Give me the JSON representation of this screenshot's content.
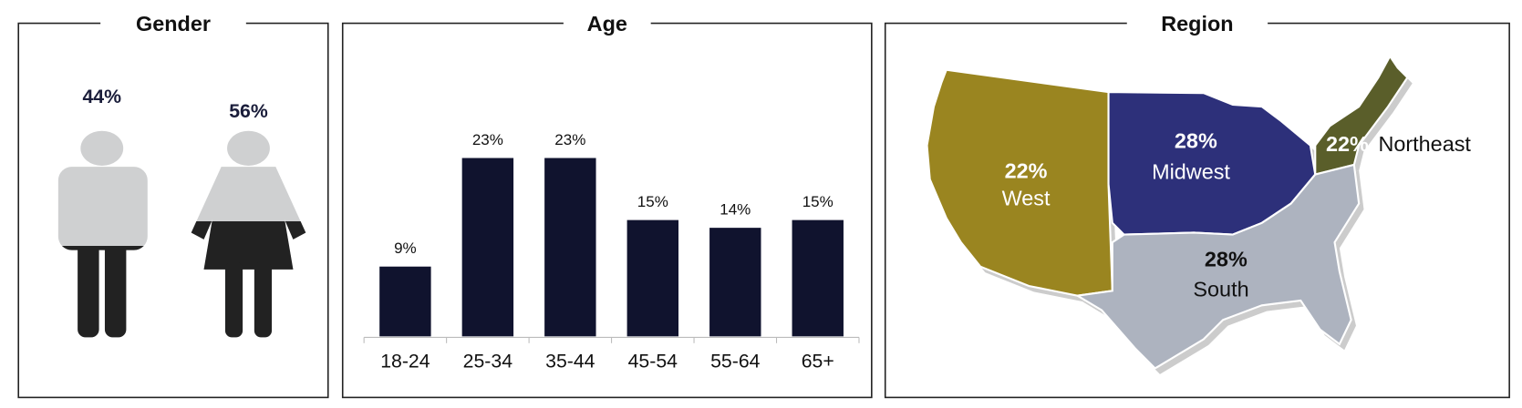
{
  "chart_data": [
    {
      "type": "pictogram",
      "title": "Gender",
      "values": [
        44,
        56
      ],
      "value_labels": [
        "44%",
        "56%"
      ],
      "colors": [
        "#cfd0d1",
        "#222222"
      ]
    },
    {
      "type": "bar",
      "title": "Age",
      "categories": [
        "18-24",
        "25-34",
        "35-44",
        "45-54",
        "55-64",
        "65+"
      ],
      "values": [
        9,
        23,
        23,
        15,
        14,
        15
      ],
      "value_labels": [
        "9%",
        "23%",
        "23%",
        "15%",
        "14%",
        "15%"
      ],
      "color": "#10132e"
    },
    {
      "type": "map",
      "title": "Region",
      "categories": [
        "West",
        "Midwest",
        "Northeast",
        "South"
      ],
      "values": [
        22,
        28,
        22,
        28
      ],
      "value_labels": [
        "22%",
        "28%",
        "22%",
        "28%"
      ],
      "colors": [
        "#9a8520",
        "#2d307a",
        "#5a5e2a",
        "#adb3bf"
      ]
    }
  ]
}
